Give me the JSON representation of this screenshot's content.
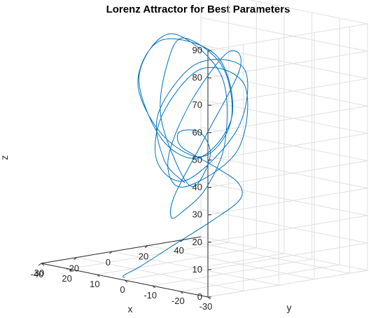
{
  "chart_data": {
    "type": "line",
    "plot3d": true,
    "title": "Lorenz Attractor for Best Parameters",
    "xlabel": "x",
    "ylabel": "y",
    "zlabel": "z",
    "xlim": [
      -30,
      30
    ],
    "ylim": [
      -40,
      50
    ],
    "zlim": [
      0,
      90
    ],
    "xticks": [
      "-30",
      "-20",
      "-10",
      "0",
      "10",
      "20",
      "30"
    ],
    "yticks": [
      "-40",
      "-20",
      "0",
      "20",
      "40"
    ],
    "zticks": [
      "0",
      "10",
      "20",
      "30",
      "40",
      "50",
      "60",
      "70",
      "80",
      "90"
    ],
    "grid": true,
    "line_color": "#0072bd",
    "series": [
      {
        "description_of_shape": "trajectory",
        "x": [
          0.0,
          -0.4,
          -2.5,
          -6.0,
          -9.0,
          -12.2,
          -14.8,
          -15.6,
          -15.0,
          -11.0,
          -3.2,
          3.4,
          6.2,
          5.4,
          3.4,
          6.2,
          13.2,
          18.2,
          15.8,
          9.6,
          6.4,
          8.4,
          14.4,
          19.8,
          16.6,
          9.8,
          6.0,
          8.2,
          14.6,
          19.2,
          15.4,
          8.4,
          2.4,
          -4.2,
          -10.4,
          -15.6,
          -18.6,
          -14.8,
          -8.8,
          -6.4,
          -9.2,
          -15.0,
          -20.2,
          -16.4,
          -9.6,
          -5.8,
          -8.0,
          -13.8,
          -19.2,
          -16.2,
          -9.2,
          -3.2,
          3.6,
          10.2
        ],
        "y": [
          -40.0,
          -41.0,
          -35.0,
          -22.0,
          -4.0,
          6.0,
          1.0,
          -12.0,
          -22.0,
          -26.0,
          -14.0,
          8.0,
          18.0,
          8.0,
          -4.0,
          -10.0,
          5.0,
          22.0,
          40.0,
          35.0,
          14.0,
          -6.0,
          -10.0,
          12.0,
          38.0,
          36.0,
          12.0,
          -6.0,
          -9.0,
          16.0,
          38.0,
          30.0,
          10.0,
          -14.0,
          -30.0,
          -36.0,
          -24.0,
          2.0,
          4.0,
          -14.0,
          -30.0,
          -30.0,
          -8.0,
          2.0,
          -12.0,
          -28.0,
          -34.0,
          -26.0,
          -6.0,
          2.0,
          -14.0,
          -26.0,
          -12.0,
          10.0
        ],
        "z": [
          1.0,
          2.0,
          5.0,
          12.0,
          20.0,
          27.0,
          34.0,
          41.0,
          46.0,
          50.0,
          52.0,
          48.0,
          38.0,
          28.0,
          36.0,
          56.0,
          72.0,
          78.0,
          66.0,
          48.0,
          38.0,
          48.0,
          66.0,
          78.0,
          70.0,
          50.0,
          38.0,
          46.0,
          68.0,
          80.0,
          64.0,
          42.0,
          28.0,
          23.0,
          24.0,
          34.0,
          54.0,
          76.0,
          80.0,
          62.0,
          44.0,
          36.0,
          48.0,
          70.0,
          76.0,
          60.0,
          44.0,
          38.0,
          56.0,
          76.0,
          78.0,
          60.0,
          40.0,
          28.0
        ]
      }
    ]
  }
}
